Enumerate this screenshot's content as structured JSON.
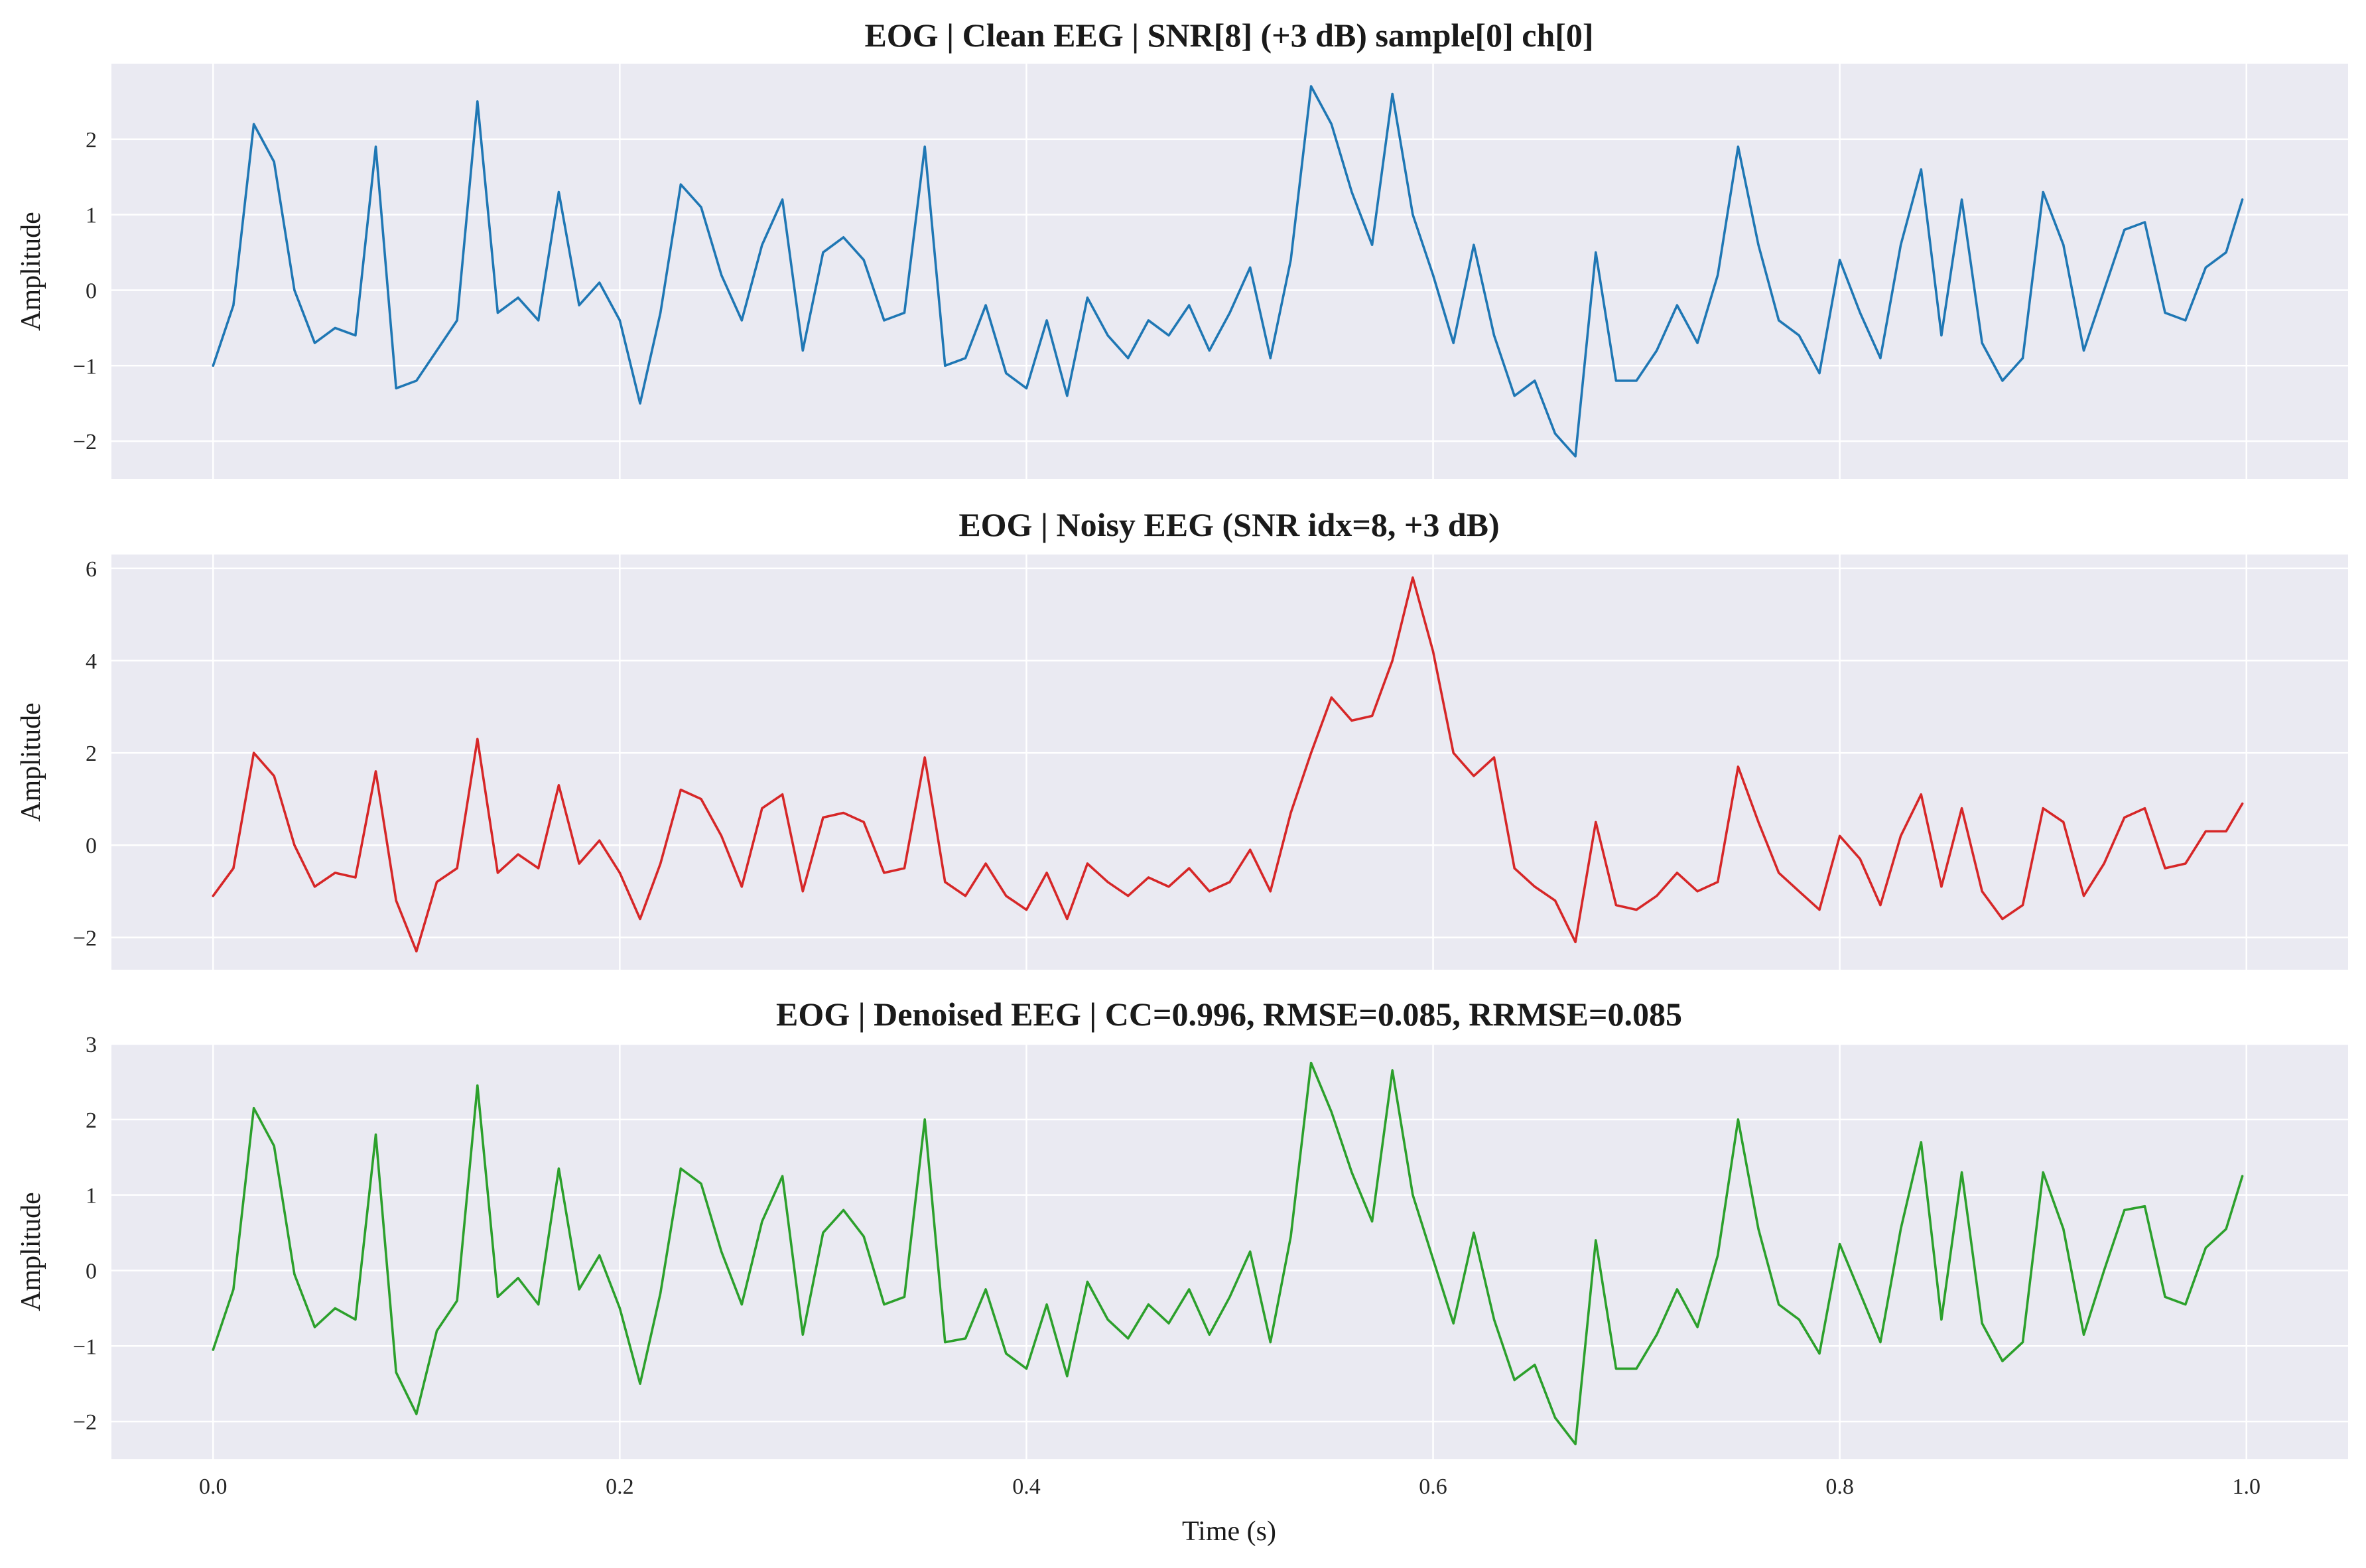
{
  "chart_data": [
    {
      "type": "line",
      "title": "EOG | Clean EEG | SNR[8] (+3 dB) sample[0] ch[0]",
      "ylabel": "Amplitude",
      "xlabel": "",
      "xlim": [
        -0.05,
        1.05
      ],
      "ylim": [
        -2.5,
        3.0
      ],
      "yticks": [
        -2,
        -1,
        0,
        1,
        2
      ],
      "ytick_labels": [
        "−2",
        "−1",
        "0",
        "1",
        "2"
      ],
      "xticks": [
        0.0,
        0.2,
        0.4,
        0.6,
        0.8,
        1.0
      ],
      "xtick_labels": [],
      "grid": true,
      "color": "#1f77b4",
      "series": [
        {
          "x": [
            0.0,
            0.01,
            0.02,
            0.03,
            0.04,
            0.05,
            0.06,
            0.07,
            0.08,
            0.09,
            0.1,
            0.11,
            0.12,
            0.13,
            0.14,
            0.15,
            0.16,
            0.17,
            0.18,
            0.19,
            0.2,
            0.21,
            0.22,
            0.23,
            0.24,
            0.25,
            0.26,
            0.27,
            0.28,
            0.29,
            0.3,
            0.31,
            0.32,
            0.33,
            0.34,
            0.35,
            0.36,
            0.37,
            0.38,
            0.39,
            0.4,
            0.41,
            0.42,
            0.43,
            0.44,
            0.45,
            0.46,
            0.47,
            0.48,
            0.49,
            0.5,
            0.51,
            0.52,
            0.53,
            0.54,
            0.55,
            0.56,
            0.57,
            0.58,
            0.59,
            0.6,
            0.61,
            0.62,
            0.63,
            0.64,
            0.65,
            0.66,
            0.67,
            0.68,
            0.69,
            0.7,
            0.71,
            0.72,
            0.73,
            0.74,
            0.75,
            0.76,
            0.77,
            0.78,
            0.79,
            0.8,
            0.81,
            0.82,
            0.83,
            0.84,
            0.85,
            0.86,
            0.87,
            0.88,
            0.89,
            0.9,
            0.91,
            0.92,
            0.93,
            0.94,
            0.95,
            0.96,
            0.97,
            0.98,
            0.99,
            0.998
          ],
          "y": [
            -1.0,
            -0.2,
            2.2,
            1.7,
            0.0,
            -0.7,
            -0.5,
            -0.6,
            1.9,
            -1.3,
            -1.2,
            -0.8,
            -0.4,
            2.5,
            -0.3,
            -0.1,
            -0.4,
            1.3,
            -0.2,
            0.1,
            -0.4,
            -1.5,
            -0.3,
            1.4,
            1.1,
            0.2,
            -0.4,
            0.6,
            1.2,
            -0.8,
            0.5,
            0.7,
            0.4,
            -0.4,
            -0.3,
            1.9,
            -1.0,
            -0.9,
            -0.2,
            -1.1,
            -1.3,
            -0.4,
            -1.4,
            -0.1,
            -0.6,
            -0.9,
            -0.4,
            -0.6,
            -0.2,
            -0.8,
            -0.3,
            0.3,
            -0.9,
            0.4,
            2.7,
            2.2,
            1.3,
            0.6,
            2.6,
            1.0,
            0.2,
            -0.7,
            0.6,
            -0.6,
            -1.4,
            -1.2,
            -1.9,
            -2.2,
            0.5,
            -1.2,
            -1.2,
            -0.8,
            -0.2,
            -0.7,
            0.2,
            1.9,
            0.6,
            -0.4,
            -0.6,
            -1.1,
            0.4,
            -0.3,
            -0.9,
            0.6,
            1.6,
            -0.6,
            1.2,
            -0.7,
            -1.2,
            -0.9,
            1.3,
            0.6,
            -0.8,
            0.0,
            0.8,
            0.9,
            -0.3,
            -0.4,
            0.3,
            0.5,
            1.2
          ]
        }
      ]
    },
    {
      "type": "line",
      "title": "EOG | Noisy EEG (SNR idx=8, +3 dB)",
      "ylabel": "Amplitude",
      "xlabel": "",
      "xlim": [
        -0.05,
        1.05
      ],
      "ylim": [
        -2.7,
        6.3
      ],
      "yticks": [
        -2,
        0,
        2,
        4,
        6
      ],
      "ytick_labels": [
        "−2",
        "0",
        "2",
        "4",
        "6"
      ],
      "xticks": [
        0.0,
        0.2,
        0.4,
        0.6,
        0.8,
        1.0
      ],
      "xtick_labels": [],
      "grid": true,
      "color": "#d62728",
      "series": [
        {
          "x": [
            0.0,
            0.01,
            0.02,
            0.03,
            0.04,
            0.05,
            0.06,
            0.07,
            0.08,
            0.09,
            0.1,
            0.11,
            0.12,
            0.13,
            0.14,
            0.15,
            0.16,
            0.17,
            0.18,
            0.19,
            0.2,
            0.21,
            0.22,
            0.23,
            0.24,
            0.25,
            0.26,
            0.27,
            0.28,
            0.29,
            0.3,
            0.31,
            0.32,
            0.33,
            0.34,
            0.35,
            0.36,
            0.37,
            0.38,
            0.39,
            0.4,
            0.41,
            0.42,
            0.43,
            0.44,
            0.45,
            0.46,
            0.47,
            0.48,
            0.49,
            0.5,
            0.51,
            0.52,
            0.53,
            0.54,
            0.55,
            0.56,
            0.57,
            0.58,
            0.59,
            0.6,
            0.61,
            0.62,
            0.63,
            0.64,
            0.65,
            0.66,
            0.67,
            0.68,
            0.69,
            0.7,
            0.71,
            0.72,
            0.73,
            0.74,
            0.75,
            0.76,
            0.77,
            0.78,
            0.79,
            0.8,
            0.81,
            0.82,
            0.83,
            0.84,
            0.85,
            0.86,
            0.87,
            0.88,
            0.89,
            0.9,
            0.91,
            0.92,
            0.93,
            0.94,
            0.95,
            0.96,
            0.97,
            0.98,
            0.99,
            0.998
          ],
          "y": [
            -1.1,
            -0.5,
            2.0,
            1.5,
            0.0,
            -0.9,
            -0.6,
            -0.7,
            1.6,
            -1.2,
            -2.3,
            -0.8,
            -0.5,
            2.3,
            -0.6,
            -0.2,
            -0.5,
            1.3,
            -0.4,
            0.1,
            -0.6,
            -1.6,
            -0.4,
            1.2,
            1.0,
            0.2,
            -0.9,
            0.8,
            1.1,
            -1.0,
            0.6,
            0.7,
            0.5,
            -0.6,
            -0.5,
            1.9,
            -0.8,
            -1.1,
            -0.4,
            -1.1,
            -1.4,
            -0.6,
            -1.6,
            -0.4,
            -0.8,
            -1.1,
            -0.7,
            -0.9,
            -0.5,
            -1.0,
            -0.8,
            -0.1,
            -1.0,
            0.7,
            2.0,
            3.2,
            2.7,
            2.8,
            4.0,
            5.8,
            4.2,
            2.0,
            1.5,
            1.9,
            -0.5,
            -0.9,
            -1.2,
            -2.1,
            0.5,
            -1.3,
            -1.4,
            -1.1,
            -0.6,
            -1.0,
            -0.8,
            1.7,
            0.5,
            -0.6,
            -1.0,
            -1.4,
            0.2,
            -0.3,
            -1.3,
            0.2,
            1.1,
            -0.9,
            0.8,
            -1.0,
            -1.6,
            -1.3,
            0.8,
            0.5,
            -1.1,
            -0.4,
            0.6,
            0.8,
            -0.5,
            -0.4,
            0.3,
            0.3,
            0.9
          ]
        }
      ]
    },
    {
      "type": "line",
      "title": "EOG | Denoised EEG | CC=0.996, RMSE=0.085, RRMSE=0.085",
      "ylabel": "Amplitude",
      "xlabel": "Time (s)",
      "xlim": [
        -0.05,
        1.05
      ],
      "ylim": [
        -2.5,
        3.0
      ],
      "yticks": [
        -2,
        -1,
        0,
        1,
        2,
        3
      ],
      "ytick_labels": [
        "−2",
        "−1",
        "0",
        "1",
        "2",
        "3"
      ],
      "xticks": [
        0.0,
        0.2,
        0.4,
        0.6,
        0.8,
        1.0
      ],
      "xtick_labels": [
        "0.0",
        "0.2",
        "0.4",
        "0.6",
        "0.8",
        "1.0"
      ],
      "grid": true,
      "color": "#2ca02c",
      "series": [
        {
          "x": [
            0.0,
            0.01,
            0.02,
            0.03,
            0.04,
            0.05,
            0.06,
            0.07,
            0.08,
            0.09,
            0.1,
            0.11,
            0.12,
            0.13,
            0.14,
            0.15,
            0.16,
            0.17,
            0.18,
            0.19,
            0.2,
            0.21,
            0.22,
            0.23,
            0.24,
            0.25,
            0.26,
            0.27,
            0.28,
            0.29,
            0.3,
            0.31,
            0.32,
            0.33,
            0.34,
            0.35,
            0.36,
            0.37,
            0.38,
            0.39,
            0.4,
            0.41,
            0.42,
            0.43,
            0.44,
            0.45,
            0.46,
            0.47,
            0.48,
            0.49,
            0.5,
            0.51,
            0.52,
            0.53,
            0.54,
            0.55,
            0.56,
            0.57,
            0.58,
            0.59,
            0.6,
            0.61,
            0.62,
            0.63,
            0.64,
            0.65,
            0.66,
            0.67,
            0.68,
            0.69,
            0.7,
            0.71,
            0.72,
            0.73,
            0.74,
            0.75,
            0.76,
            0.77,
            0.78,
            0.79,
            0.8,
            0.81,
            0.82,
            0.83,
            0.84,
            0.85,
            0.86,
            0.87,
            0.88,
            0.89,
            0.9,
            0.91,
            0.92,
            0.93,
            0.94,
            0.95,
            0.96,
            0.97,
            0.98,
            0.99,
            0.998
          ],
          "y": [
            -1.05,
            -0.25,
            2.15,
            1.65,
            -0.05,
            -0.75,
            -0.5,
            -0.65,
            1.8,
            -1.35,
            -1.9,
            -0.8,
            -0.4,
            2.45,
            -0.35,
            -0.1,
            -0.45,
            1.35,
            -0.25,
            0.2,
            -0.5,
            -1.5,
            -0.3,
            1.35,
            1.15,
            0.25,
            -0.45,
            0.65,
            1.25,
            -0.85,
            0.5,
            0.8,
            0.45,
            -0.45,
            -0.35,
            2.0,
            -0.95,
            -0.9,
            -0.25,
            -1.1,
            -1.3,
            -0.45,
            -1.4,
            -0.15,
            -0.65,
            -0.9,
            -0.45,
            -0.7,
            -0.25,
            -0.85,
            -0.35,
            0.25,
            -0.95,
            0.45,
            2.75,
            2.1,
            1.3,
            0.65,
            2.65,
            1.0,
            0.15,
            -0.7,
            0.5,
            -0.65,
            -1.45,
            -1.25,
            -1.95,
            -2.3,
            0.4,
            -1.3,
            -1.3,
            -0.85,
            -0.25,
            -0.75,
            0.2,
            2.0,
            0.55,
            -0.45,
            -0.65,
            -1.1,
            0.35,
            -0.3,
            -0.95,
            0.55,
            1.7,
            -0.65,
            1.3,
            -0.7,
            -1.2,
            -0.95,
            1.3,
            0.55,
            -0.85,
            0.0,
            0.8,
            0.85,
            -0.35,
            -0.45,
            0.3,
            0.55,
            1.25
          ]
        }
      ]
    }
  ]
}
